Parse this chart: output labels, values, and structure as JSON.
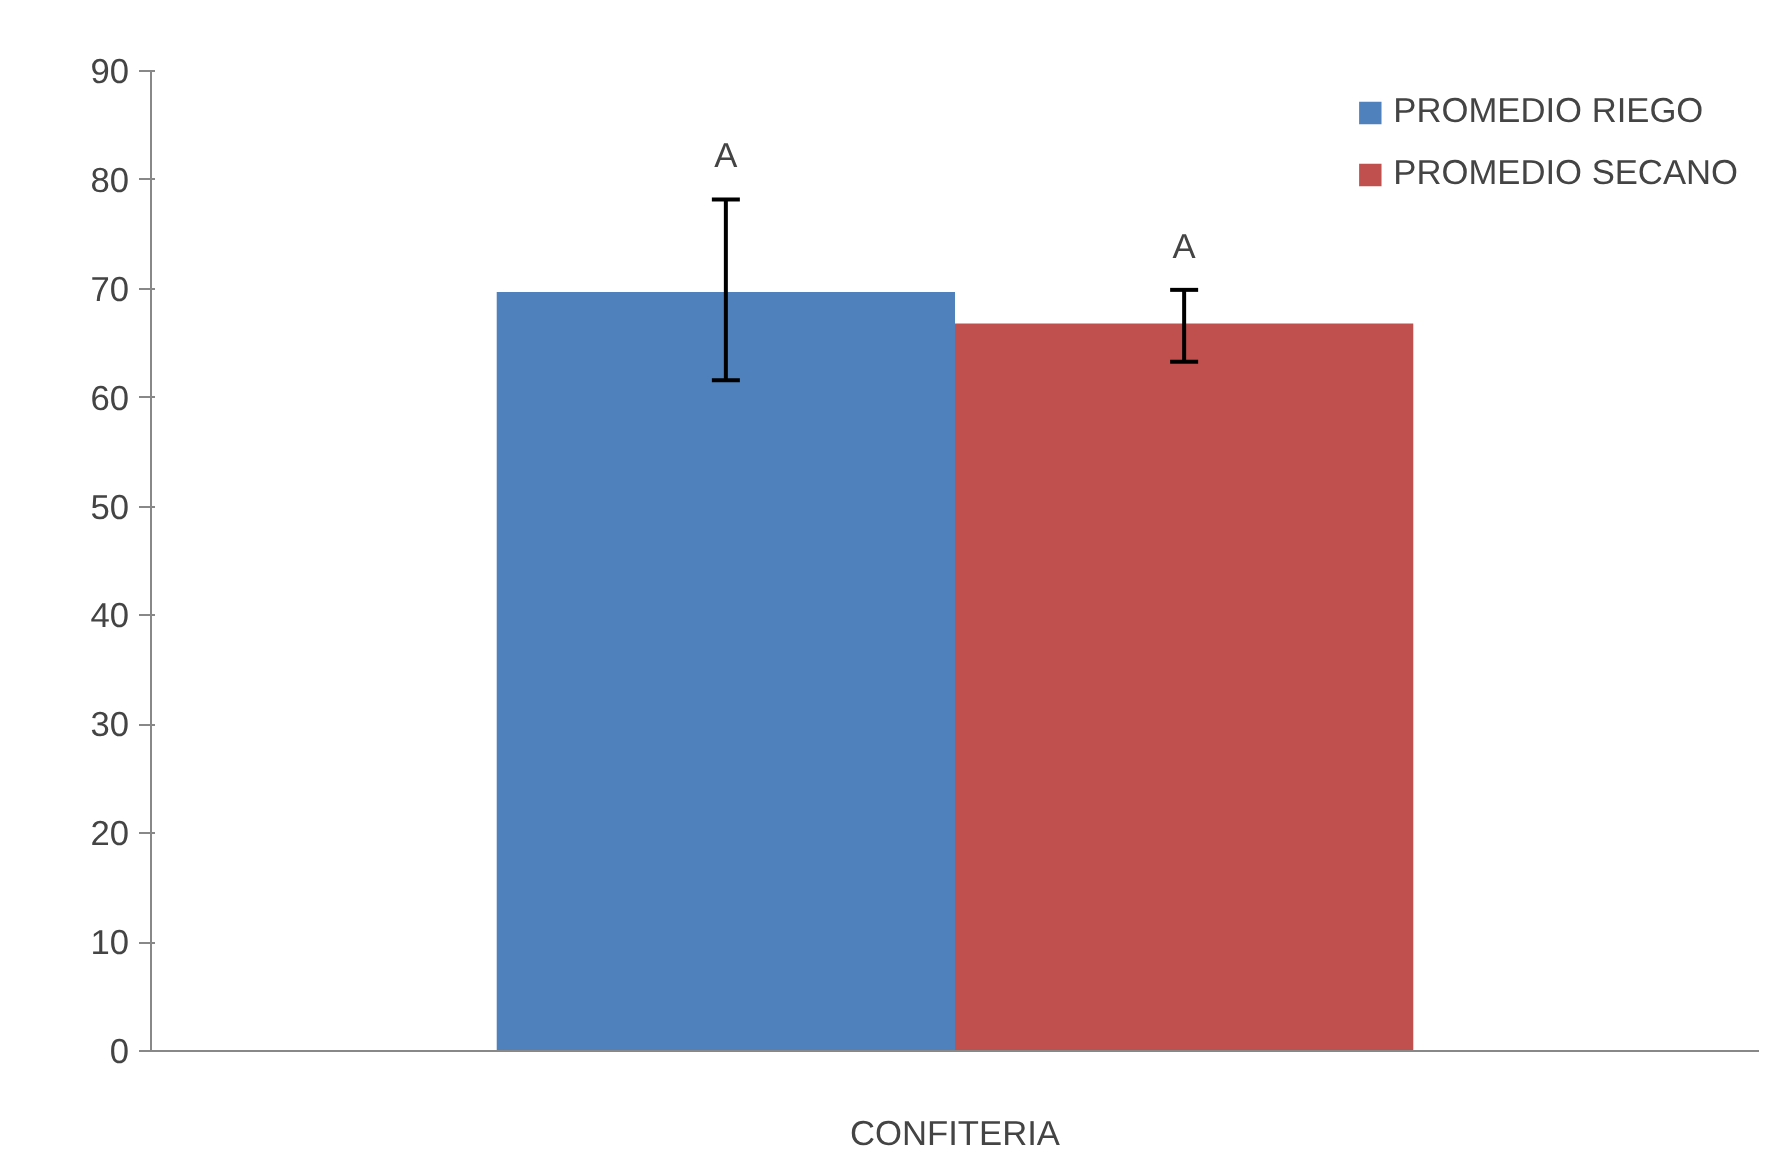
{
  "chart_data": {
    "type": "bar",
    "categories": [
      "CONFITERIA"
    ],
    "series": [
      {
        "name": "PROMEDIO RIEGO",
        "color": "#4f81bd",
        "values": [
          69.7
        ],
        "errors": [
          [
            61.6,
            78.2
          ]
        ]
      },
      {
        "name": "PROMEDIO SECANO",
        "color": "#c0504d",
        "values": [
          66.8
        ],
        "errors": [
          [
            63.3,
            69.9
          ]
        ]
      }
    ],
    "annotations": [
      "A",
      "A"
    ],
    "ylim": [
      0,
      90
    ],
    "yticks": [
      0,
      10,
      20,
      30,
      40,
      50,
      60,
      70,
      80,
      90
    ],
    "grid": false,
    "legend": "top right"
  }
}
